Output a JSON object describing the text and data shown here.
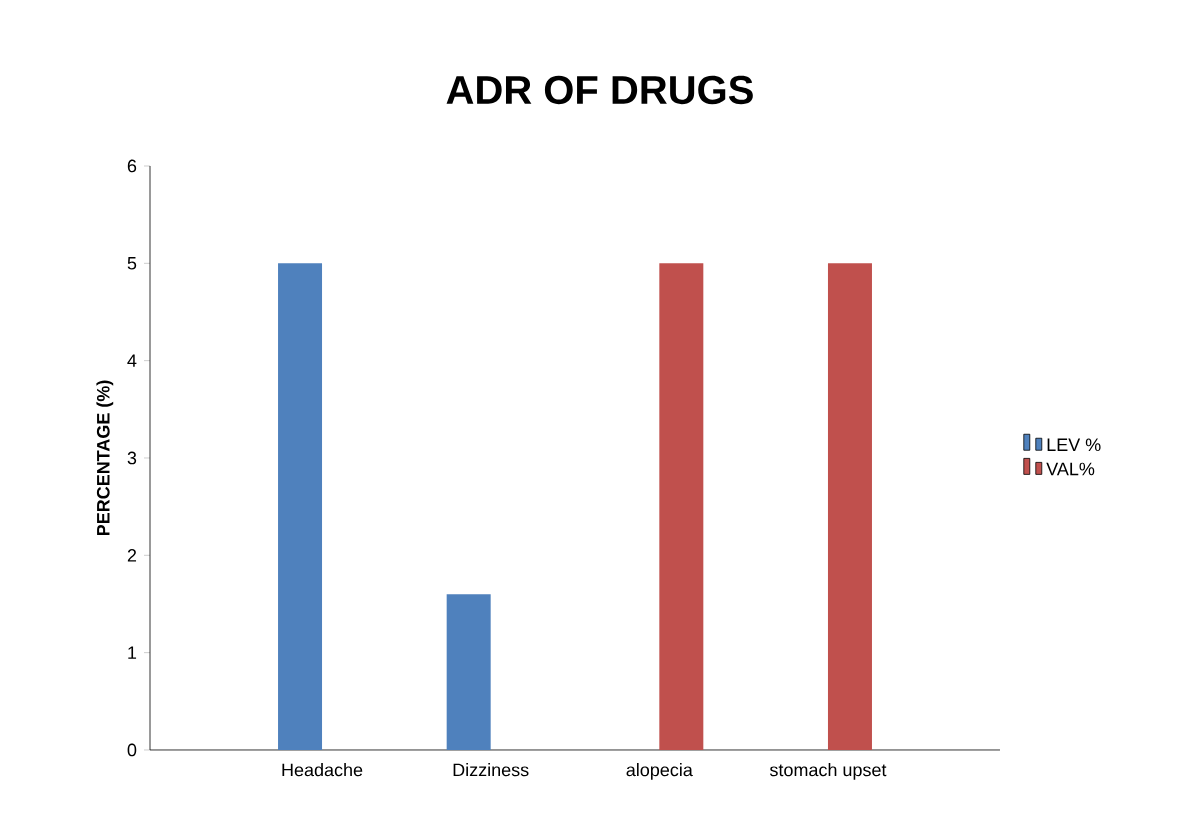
{
  "chart_data": {
    "type": "bar",
    "title": "ADR OF DRUGS",
    "ylabel": "PERCENTAGE (%)",
    "categories": [
      "Headache",
      "Dizziness",
      "alopecia",
      "stomach upset"
    ],
    "series": [
      {
        "name": "LEV %",
        "color": "#4f81bd",
        "values": [
          5,
          1.6,
          0,
          0
        ]
      },
      {
        "name": "VAL%",
        "color": "#c0504d",
        "values": [
          0,
          0,
          5,
          5
        ]
      }
    ],
    "ylim": [
      0,
      6
    ],
    "yticks": [
      0,
      1,
      2,
      3,
      4,
      5,
      6
    ],
    "grid": false,
    "legend": "right"
  }
}
